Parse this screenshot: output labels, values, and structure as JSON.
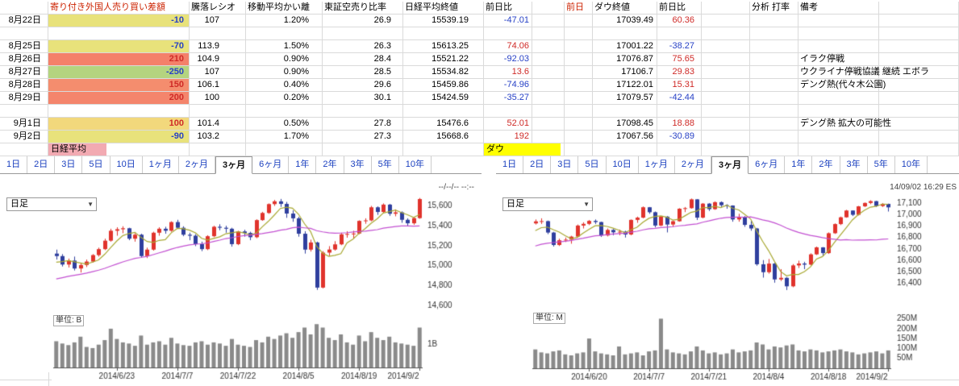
{
  "colors": {
    "accent_red": "#cc2200",
    "pos": "#cf2a27",
    "neg": "#2741c6",
    "grid": "#dadada",
    "nikkei_label_bg": "#f2aab2",
    "dow_label_bg": "#ffff00",
    "candle_up": "#e0332c",
    "candle_down": "#2f3f9e",
    "ma_short": "#a8a832",
    "ma_long": "#c24fd1",
    "volume_bar": "#8a8a8a"
  },
  "table": {
    "headers": [
      "",
      "寄り付き外国人売り買い差額",
      "騰落レシオ",
      "移動平均かい離",
      "東証空売り比率",
      "日経平均終値",
      "前日比",
      "",
      "前日",
      "ダウ終値",
      "前日比",
      "",
      "分析 打率",
      "備考",
      ""
    ],
    "labels_row": {
      "nikkei": "日経平均",
      "dow": "ダウ"
    },
    "rows": [
      {
        "date": "8月22日",
        "sagaku": "-10",
        "sagaku_bg": "#e8e27b",
        "ratio": "107",
        "kairi": "1.20%",
        "karauri": "26.9",
        "nikkei_close": "15539.19",
        "nikkei_diff": "-47.01",
        "dow_close": "17039.49",
        "dow_diff": "60.36",
        "memo": ""
      },
      {
        "blank": true
      },
      {
        "date": "8月25日",
        "sagaku": "-70",
        "sagaku_bg": "#e8e27b",
        "ratio": "113.9",
        "kairi": "1.50%",
        "karauri": "26.3",
        "nikkei_close": "15613.25",
        "nikkei_diff": "74.06",
        "dow_close": "17001.22",
        "dow_diff": "-38.27",
        "memo": ""
      },
      {
        "date": "8月26日",
        "sagaku": "210",
        "sagaku_bg": "#f4806a",
        "ratio": "104.9",
        "kairi": "0.90%",
        "karauri": "28.4",
        "nikkei_close": "15521.22",
        "nikkei_diff": "-92.03",
        "dow_close": "17076.87",
        "dow_diff": "75.65",
        "memo": "イラク停戦"
      },
      {
        "date": "8月27日",
        "sagaku": "-250",
        "sagaku_bg": "#b4d47f",
        "ratio": "107",
        "kairi": "0.90%",
        "karauri": "28.5",
        "nikkei_close": "15534.82",
        "nikkei_diff": "13.6",
        "dow_close": "17106.7",
        "dow_diff": "29.83",
        "memo": "ウクライナ停戦協議 継続  エボラ"
      },
      {
        "date": "8月28日",
        "sagaku": "150",
        "sagaku_bg": "#f48d6e",
        "ratio": "106.1",
        "kairi": "0.40%",
        "karauri": "29.6",
        "nikkei_close": "15459.86",
        "nikkei_diff": "-74.96",
        "dow_close": "17122.01",
        "dow_diff": "15.31",
        "memo": "デング熱(代々木公園)"
      },
      {
        "date": "8月29日",
        "sagaku": "200",
        "sagaku_bg": "#f4856c",
        "ratio": "100",
        "kairi": "0.20%",
        "karauri": "30.1",
        "nikkei_close": "15424.59",
        "nikkei_diff": "-35.27",
        "dow_close": "17079.57",
        "dow_diff": "-42.44",
        "memo": ""
      },
      {
        "blank": true
      },
      {
        "date": "9月1日",
        "sagaku": "100",
        "sagaku_bg": "#f2d87c",
        "ratio": "101.4",
        "kairi": "0.50%",
        "karauri": "27.8",
        "nikkei_close": "15476.6",
        "nikkei_diff": "52.01",
        "dow_close": "17098.45",
        "dow_diff": "18.88",
        "memo": "デング熱  拡大の可能性"
      },
      {
        "date": "9月2日",
        "sagaku": "-90",
        "sagaku_bg": "#e8e27b",
        "ratio": "103.2",
        "kairi": "1.70%",
        "karauri": "27.3",
        "nikkei_close": "15668.6",
        "nikkei_diff": "192",
        "dow_close": "17067.56",
        "dow_diff": "-30.89",
        "memo": ""
      }
    ]
  },
  "chart_data": [
    {
      "type": "candlestick",
      "name": "日経平均",
      "interval": "日足",
      "timestamp": "--/--/-- --:--",
      "unit_label": "単位: B",
      "tabs": [
        "1日",
        "2日",
        "3日",
        "5日",
        "10日",
        "1ヶ月",
        "2ヶ月",
        "3ヶ月",
        "6ヶ月",
        "1年",
        "2年",
        "3年",
        "5年",
        "10年"
      ],
      "selected_tab": "3ヶ月",
      "price_range": [
        14550,
        15750
      ],
      "y_ticks": [
        15600,
        15400,
        15200,
        15000,
        14800,
        14600
      ],
      "volume_max": 2.05,
      "volume_ticks": [
        {
          "v": 1,
          "label": "1B"
        }
      ],
      "x_ticks": [
        {
          "i": 10,
          "label": "2014/6/23"
        },
        {
          "i": 20,
          "label": "2014/7/7"
        },
        {
          "i": 30,
          "label": "2014/7/22"
        },
        {
          "i": 40,
          "label": "2014/8/5"
        },
        {
          "i": 50,
          "label": "2014/8/19"
        },
        {
          "i": 60,
          "label": "2014/9/2"
        }
      ],
      "ma_short_window": 5,
      "ma_long_window": 25,
      "pre_closes": [
        14700,
        14720,
        14705,
        14740,
        14760,
        14745,
        14780,
        14800,
        14790,
        14820,
        14840,
        14830,
        14860,
        14880,
        14870,
        14900,
        14920,
        14910,
        14940,
        14960,
        14980,
        15000,
        15030,
        15060
      ],
      "candles": [
        [
          15120,
          15160,
          15060,
          15095
        ],
        [
          15095,
          15115,
          14990,
          15010
        ],
        [
          15010,
          15070,
          14980,
          15050
        ],
        [
          15050,
          15090,
          14950,
          14970
        ],
        [
          14970,
          15025,
          14930,
          15005
        ],
        [
          15005,
          15060,
          14985,
          15040
        ],
        [
          15040,
          15115,
          15030,
          15105
        ],
        [
          15105,
          15180,
          15090,
          15165
        ],
        [
          15165,
          15270,
          15155,
          15250
        ],
        [
          15250,
          15370,
          15240,
          15350
        ],
        [
          15350,
          15385,
          15300,
          15365
        ],
        [
          15365,
          15395,
          15325,
          15375
        ],
        [
          15375,
          15380,
          15255,
          15270
        ],
        [
          15270,
          15325,
          15240,
          15310
        ],
        [
          15310,
          15320,
          15080,
          15095
        ],
        [
          15095,
          15180,
          15075,
          15160
        ],
        [
          15160,
          15340,
          15150,
          15330
        ],
        [
          15330,
          15385,
          15300,
          15370
        ],
        [
          15370,
          15390,
          15320,
          15350
        ],
        [
          15350,
          15445,
          15340,
          15437
        ],
        [
          15437,
          15460,
          15370,
          15380
        ],
        [
          15380,
          15395,
          15295,
          15310
        ],
        [
          15310,
          15330,
          15255,
          15300
        ],
        [
          15300,
          15315,
          15195,
          15215
        ],
        [
          15215,
          15240,
          15145,
          15165
        ],
        [
          15165,
          15305,
          15155,
          15295
        ],
        [
          15295,
          15400,
          15285,
          15390
        ],
        [
          15390,
          15415,
          15355,
          15380
        ],
        [
          15380,
          15400,
          15330,
          15370
        ],
        [
          15370,
          15380,
          15190,
          15215
        ],
        [
          15215,
          15350,
          15205,
          15343
        ],
        [
          15343,
          15360,
          15290,
          15328
        ],
        [
          15328,
          15340,
          15255,
          15285
        ],
        [
          15285,
          15465,
          15275,
          15457
        ],
        [
          15457,
          15540,
          15450,
          15529
        ],
        [
          15529,
          15625,
          15520,
          15618
        ],
        [
          15618,
          15660,
          15600,
          15646
        ],
        [
          15646,
          15670,
          15590,
          15620
        ],
        [
          15620,
          15640,
          15480,
          15523
        ],
        [
          15523,
          15555,
          15440,
          15475
        ],
        [
          15475,
          15490,
          15290,
          15320
        ],
        [
          15320,
          15345,
          15120,
          15160
        ],
        [
          15160,
          15260,
          15140,
          15232
        ],
        [
          15232,
          15240,
          14755,
          14778
        ],
        [
          14778,
          15145,
          14770,
          15130
        ],
        [
          15130,
          15195,
          15095,
          15161
        ],
        [
          15161,
          15245,
          15150,
          15213
        ],
        [
          15213,
          15330,
          15205,
          15314
        ],
        [
          15314,
          15345,
          15280,
          15318
        ],
        [
          15318,
          15350,
          15270,
          15322
        ],
        [
          15322,
          15455,
          15315,
          15449
        ],
        [
          15449,
          15475,
          15420,
          15454
        ],
        [
          15454,
          15600,
          15445,
          15586
        ],
        [
          15586,
          15595,
          15510,
          15539
        ],
        [
          15539,
          15625,
          15530,
          15613
        ],
        [
          15613,
          15620,
          15500,
          15521
        ],
        [
          15521,
          15565,
          15495,
          15535
        ],
        [
          15535,
          15545,
          15430,
          15460
        ],
        [
          15460,
          15475,
          15395,
          15425
        ],
        [
          15425,
          15490,
          15410,
          15477
        ],
        [
          15477,
          15680,
          15470,
          15669
        ]
      ],
      "volumes": [
        1.15,
        1.05,
        0.98,
        1.1,
        1.35,
        0.9,
        0.85,
        1.0,
        1.2,
        1.7,
        1.25,
        1.1,
        1.05,
        0.95,
        1.4,
        1.0,
        1.1,
        1.15,
        1.0,
        1.3,
        1.05,
        0.98,
        0.95,
        1.1,
        1.15,
        1.0,
        1.1,
        1.05,
        0.95,
        1.25,
        1.0,
        0.95,
        0.9,
        1.2,
        1.1,
        1.35,
        1.25,
        1.4,
        1.5,
        1.3,
        1.55,
        1.75,
        1.45,
        1.9,
        1.75,
        1.3,
        1.2,
        1.45,
        1.1,
        1.0,
        1.4,
        1.15,
        1.55,
        1.3,
        1.2,
        1.35,
        1.1,
        1.05,
        1.0,
        0.95,
        1.75
      ]
    },
    {
      "type": "candlestick",
      "name": "ダウ",
      "interval": "日足",
      "timestamp": "14/09/02 16:29 ES",
      "unit_label": "単位: M",
      "tabs": [
        "1日",
        "2日",
        "3日",
        "5日",
        "10日",
        "1ヶ月",
        "2ヶ月",
        "3ヶ月",
        "6ヶ月",
        "1年",
        "2年",
        "3年",
        "5年",
        "10年"
      ],
      "selected_tab": "3ヶ月",
      "price_range": [
        16156,
        17212
      ],
      "y_ticks": [
        17100,
        17000,
        16900,
        16800,
        16700,
        16600,
        16500,
        16400
      ],
      "volume_max": 260,
      "volume_ticks": [
        {
          "v": 250,
          "label": "250M"
        },
        {
          "v": 200,
          "label": "200M"
        },
        {
          "v": 150,
          "label": "150M"
        },
        {
          "v": 100,
          "label": "100M"
        },
        {
          "v": 50,
          "label": "50M"
        }
      ],
      "x_ticks": [
        {
          "i": 9,
          "label": "2014/6/20"
        },
        {
          "i": 19,
          "label": "2014/7/7"
        },
        {
          "i": 29,
          "label": "2014/7/21"
        },
        {
          "i": 39,
          "label": "2014/8/4"
        },
        {
          "i": 49,
          "label": "2014/8/18"
        },
        {
          "i": 59,
          "label": "2014/9/2"
        }
      ],
      "ma_short_window": 5,
      "ma_long_window": 25,
      "pre_closes": [
        16580,
        16600,
        16590,
        16620,
        16640,
        16630,
        16660,
        16680,
        16670,
        16700,
        16710,
        16700,
        16720,
        16740,
        16730,
        16750,
        16770,
        16760,
        16780,
        16800,
        16810,
        16820,
        16850,
        16880
      ],
      "candles": [
        [
          16925,
          16960,
          16915,
          16943
        ],
        [
          16943,
          16970,
          16920,
          16945
        ],
        [
          16945,
          16950,
          16830,
          16844
        ],
        [
          16844,
          16850,
          16720,
          16734
        ],
        [
          16734,
          16790,
          16725,
          16776
        ],
        [
          16776,
          16800,
          16760,
          16781
        ],
        [
          16781,
          16815,
          16745,
          16808
        ],
        [
          16808,
          16915,
          16800,
          16906
        ],
        [
          16906,
          16935,
          16880,
          16921
        ],
        [
          16921,
          16955,
          16910,
          16947
        ],
        [
          16947,
          16960,
          16920,
          16937
        ],
        [
          16937,
          16940,
          16805,
          16818
        ],
        [
          16818,
          16880,
          16810,
          16867
        ],
        [
          16867,
          16875,
          16820,
          16846
        ],
        [
          16846,
          16870,
          16820,
          16852
        ],
        [
          16852,
          16860,
          16800,
          16827
        ],
        [
          16827,
          16960,
          16820,
          16956
        ],
        [
          16956,
          16985,
          16930,
          16976
        ],
        [
          16976,
          17075,
          16970,
          17068
        ],
        [
          17068,
          17070,
          17010,
          17024
        ],
        [
          17024,
          17030,
          16890,
          16906
        ],
        [
          16906,
          16990,
          16900,
          16985
        ],
        [
          16985,
          16990,
          16845,
          16915
        ],
        [
          16915,
          16950,
          16895,
          16944
        ],
        [
          16944,
          17060,
          16940,
          17055
        ],
        [
          17055,
          17070,
          17025,
          17060
        ],
        [
          17060,
          17145,
          17055,
          17138
        ],
        [
          17138,
          17140,
          16955,
          16976
        ],
        [
          16976,
          17105,
          16970,
          17100
        ],
        [
          17100,
          17105,
          17035,
          17051
        ],
        [
          17051,
          17120,
          17045,
          17113
        ],
        [
          17113,
          17120,
          17070,
          17086
        ],
        [
          17086,
          17095,
          17055,
          17083
        ],
        [
          17083,
          17085,
          16940,
          16960
        ],
        [
          16960,
          17010,
          16940,
          16982
        ],
        [
          16982,
          16990,
          16895,
          16912
        ],
        [
          16912,
          16945,
          16860,
          16880
        ],
        [
          16880,
          16885,
          16550,
          16563
        ],
        [
          16563,
          16600,
          16445,
          16493
        ],
        [
          16493,
          16610,
          16480,
          16569
        ],
        [
          16569,
          16575,
          16400,
          16429
        ],
        [
          16429,
          16520,
          16415,
          16443
        ],
        [
          16443,
          16450,
          16335,
          16368
        ],
        [
          16368,
          16565,
          16360,
          16553
        ],
        [
          16553,
          16595,
          16530,
          16570
        ],
        [
          16570,
          16585,
          16520,
          16560
        ],
        [
          16560,
          16660,
          16555,
          16651
        ],
        [
          16651,
          16720,
          16645,
          16713
        ],
        [
          16713,
          16715,
          16640,
          16662
        ],
        [
          16662,
          16845,
          16655,
          16838
        ],
        [
          16838,
          16925,
          16832,
          16919
        ],
        [
          16919,
          16985,
          16910,
          16979
        ],
        [
          16979,
          17045,
          16975,
          17039
        ],
        [
          17039,
          17040,
          16990,
          17001
        ],
        [
          17001,
          17080,
          16995,
          17076
        ],
        [
          17076,
          17110,
          17070,
          17106
        ],
        [
          17106,
          17130,
          17095,
          17122
        ],
        [
          17122,
          17125,
          17070,
          17079
        ],
        [
          17079,
          17105,
          17070,
          17098
        ],
        [
          17098,
          17100,
          17030,
          17067
        ]
      ],
      "volumes": [
        95,
        80,
        75,
        85,
        90,
        70,
        65,
        75,
        80,
        150,
        85,
        75,
        70,
        65,
        110,
        70,
        75,
        80,
        65,
        85,
        90,
        250,
        95,
        80,
        75,
        70,
        85,
        110,
        90,
        75,
        80,
        70,
        75,
        95,
        80,
        85,
        90,
        130,
        120,
        95,
        110,
        105,
        115,
        120,
        90,
        85,
        95,
        90,
        80,
        85,
        90,
        95,
        85,
        80,
        70,
        75,
        80,
        85,
        75,
        90
      ]
    }
  ]
}
